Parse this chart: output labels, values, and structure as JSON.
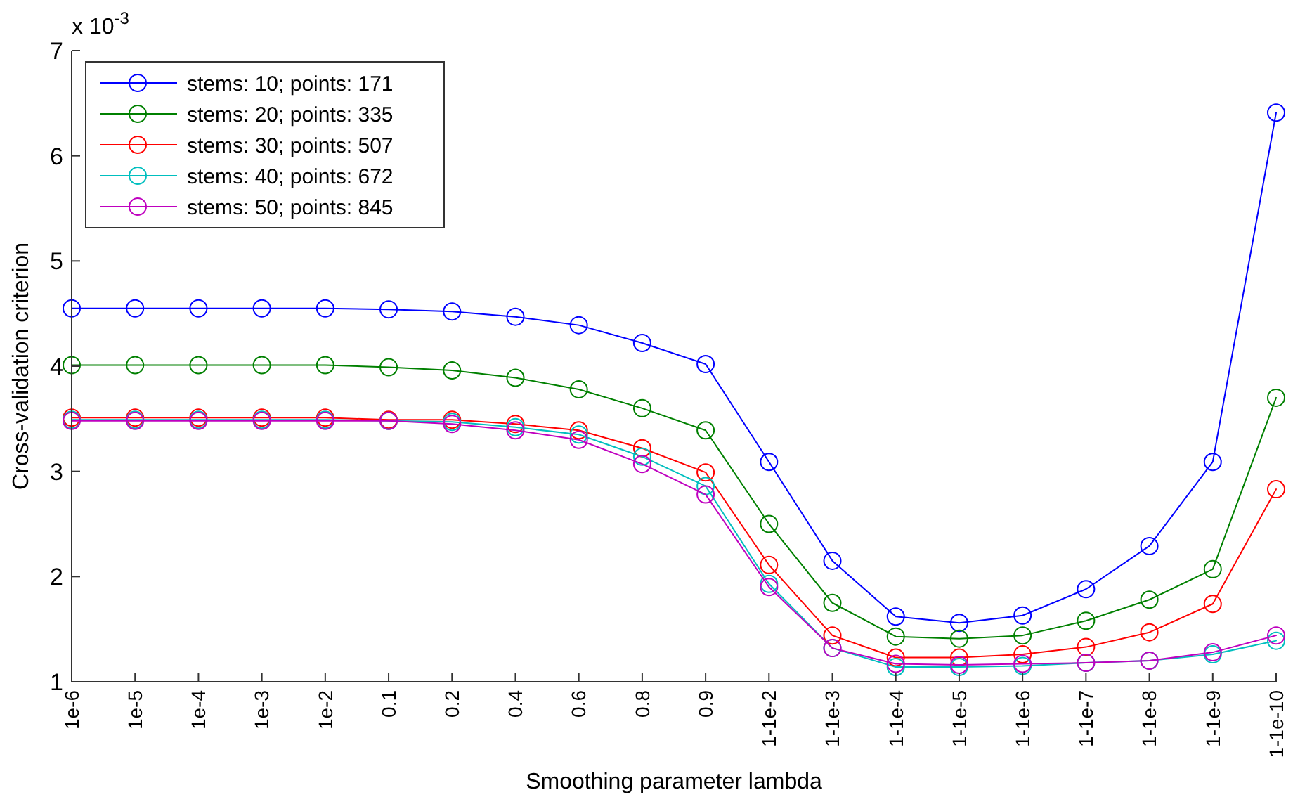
{
  "chart_data": {
    "type": "line",
    "xlabel": "Smoothing parameter lambda",
    "ylabel": "Cross-validation criterion",
    "annotations": [
      "x 10$^{-3}$"
    ],
    "categories": [
      "1e-6",
      "1e-5",
      "1e-4",
      "1e-3",
      "1e-2",
      "0.1",
      "0.2",
      "0.4",
      "0.6",
      "0.8",
      "0.9",
      "1-1e-2",
      "1-1e-3",
      "1-1e-4",
      "1-1e-5",
      "1-1e-6",
      "1-1e-7",
      "1-1e-8",
      "1-1e-9",
      "1-1e-10"
    ],
    "ylim": [
      1,
      7
    ],
    "yticks": [
      1,
      2,
      3,
      4,
      5,
      6,
      7
    ],
    "grid": false,
    "legend": "top left",
    "marker": "circle",
    "line_style": "solid",
    "series": [
      {
        "name": "stems: 10; points: 171",
        "color": "#0000ff",
        "values": [
          4.55,
          4.55,
          4.55,
          4.55,
          4.55,
          4.54,
          4.52,
          4.47,
          4.39,
          4.22,
          4.02,
          3.09,
          2.15,
          1.62,
          1.56,
          1.63,
          1.88,
          2.29,
          3.09,
          6.41
        ]
      },
      {
        "name": "stems: 20; points: 335",
        "color": "#008000",
        "values": [
          4.01,
          4.01,
          4.01,
          4.01,
          4.01,
          3.99,
          3.96,
          3.89,
          3.78,
          3.6,
          3.39,
          2.5,
          1.75,
          1.43,
          1.41,
          1.44,
          1.58,
          1.78,
          2.07,
          3.7
        ]
      },
      {
        "name": "stems: 30; points: 507",
        "color": "#ff0000",
        "values": [
          3.51,
          3.51,
          3.51,
          3.51,
          3.51,
          3.49,
          3.49,
          3.45,
          3.39,
          3.22,
          2.99,
          2.11,
          1.44,
          1.23,
          1.23,
          1.26,
          1.33,
          1.47,
          1.74,
          2.83
        ]
      },
      {
        "name": "stems: 40; points: 672",
        "color": "#00bfbf",
        "values": [
          3.49,
          3.49,
          3.49,
          3.49,
          3.49,
          3.48,
          3.47,
          3.42,
          3.35,
          3.14,
          2.86,
          1.93,
          1.32,
          1.14,
          1.14,
          1.15,
          1.18,
          1.2,
          1.26,
          1.39
        ]
      },
      {
        "name": "stems: 50; points: 845",
        "color": "#bf00bf",
        "values": [
          3.48,
          3.48,
          3.48,
          3.48,
          3.48,
          3.48,
          3.45,
          3.39,
          3.3,
          3.07,
          2.78,
          1.9,
          1.32,
          1.17,
          1.16,
          1.17,
          1.18,
          1.2,
          1.28,
          1.44
        ]
      }
    ]
  }
}
